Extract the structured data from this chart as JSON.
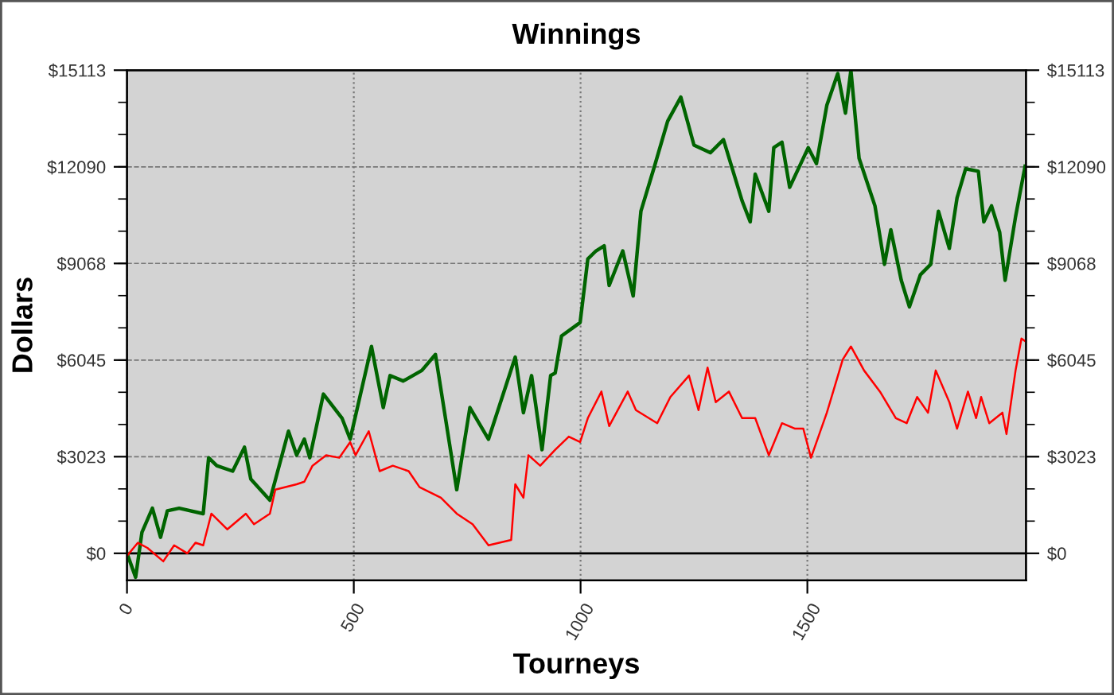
{
  "chart_data": {
    "type": "line",
    "title": "Winnings",
    "xlabel": "Tourneys",
    "ylabel": "Dollars",
    "xlim": [
      0,
      1982
    ],
    "xticks": [
      0,
      500,
      1000,
      1500
    ],
    "ylim": [
      -845,
      15113
    ],
    "yticks": [
      {
        "value": 0,
        "label": "$0"
      },
      {
        "value": 3023,
        "label": "$3023"
      },
      {
        "value": 6045,
        "label": "$6045"
      },
      {
        "value": 9068,
        "label": "$9068"
      },
      {
        "value": 12090,
        "label": "$12090"
      },
      {
        "value": 15113,
        "label": "$15113"
      }
    ],
    "y2lim": [
      -845,
      15113
    ],
    "y2ticks": [
      {
        "value": 0,
        "label": "$0"
      },
      {
        "value": 3023,
        "label": "$3023"
      },
      {
        "value": 6045,
        "label": "$6045"
      },
      {
        "value": 9068,
        "label": "$9068"
      },
      {
        "value": 12090,
        "label": "$12090"
      },
      {
        "value": 15113,
        "label": "$15113"
      }
    ],
    "grid": true,
    "marker": "none",
    "line_style": "solid",
    "ref_lines": [
      {
        "axis": "y",
        "value": 0,
        "color": "#000000",
        "line_style": "solid"
      }
    ],
    "series": [
      {
        "color": "#006400",
        "x": [
          0,
          19,
          33,
          56,
          74,
          89,
          115,
          168,
          180,
          198,
          233,
          259,
          273,
          315,
          356,
          374,
          391,
          403,
          433,
          474,
          492,
          539,
          565,
          580,
          609,
          650,
          680,
          727,
          756,
          797,
          856,
          874,
          892,
          915,
          934,
          944,
          958,
          999,
          1016,
          1034,
          1052,
          1063,
          1093,
          1116,
          1133,
          1163,
          1192,
          1221,
          1250,
          1286,
          1315,
          1356,
          1374,
          1385,
          1415,
          1426,
          1444,
          1461,
          1502,
          1520,
          1543,
          1567,
          1584,
          1596,
          1614,
          1649,
          1670,
          1684,
          1707,
          1725,
          1749,
          1772,
          1789,
          1813,
          1830,
          1849,
          1877,
          1889,
          1906,
          1924,
          1936,
          1959,
          1980
        ],
        "values": [
          0,
          -750,
          660,
          1410,
          500,
          1330,
          1410,
          1240,
          2990,
          2740,
          2570,
          3320,
          2320,
          1660,
          3820,
          3070,
          3570,
          2990,
          4980,
          4230,
          3570,
          6470,
          4560,
          5560,
          5390,
          5720,
          6220,
          1990,
          4560,
          3570,
          6140,
          4400,
          5560,
          3240,
          5560,
          5640,
          6800,
          7220,
          9210,
          9460,
          9620,
          8380,
          9460,
          8050,
          10700,
          12110,
          13520,
          14270,
          12770,
          12530,
          12940,
          11030,
          10370,
          11860,
          10700,
          12690,
          12860,
          11450,
          12690,
          12190,
          14020,
          15010,
          13770,
          15110,
          12360,
          10870,
          9040,
          10120,
          8540,
          7710,
          8710,
          9040,
          10700,
          9540,
          11120,
          12030,
          11950,
          10370,
          10870,
          10040,
          8540,
          10530,
          12110
        ]
      },
      {
        "color": "#ff0000",
        "x": [
          0,
          24,
          45,
          80,
          104,
          133,
          151,
          168,
          186,
          221,
          262,
          280,
          315,
          327,
          374,
          391,
          409,
          439,
          468,
          492,
          504,
          533,
          557,
          586,
          621,
          645,
          692,
          727,
          762,
          797,
          821,
          847,
          856,
          874,
          885,
          911,
          944,
          974,
          999,
          1016,
          1046,
          1063,
          1104,
          1122,
          1169,
          1198,
          1239,
          1260,
          1280,
          1298,
          1327,
          1356,
          1385,
          1415,
          1444,
          1473,
          1491,
          1508,
          1543,
          1578,
          1596,
          1625,
          1660,
          1695,
          1719,
          1742,
          1766,
          1783,
          1813,
          1830,
          1854,
          1872,
          1883,
          1901,
          1930,
          1939,
          1959,
          1972,
          1980
        ],
        "values": [
          -80,
          330,
          170,
          -250,
          250,
          0,
          330,
          250,
          1240,
          750,
          1240,
          910,
          1240,
          1990,
          2160,
          2240,
          2740,
          3070,
          2990,
          3480,
          3070,
          3820,
          2570,
          2740,
          2570,
          2070,
          1740,
          1240,
          910,
          250,
          330,
          420,
          2160,
          1740,
          3070,
          2740,
          3240,
          3650,
          3480,
          4230,
          5060,
          3980,
          5060,
          4480,
          4070,
          4890,
          5560,
          4480,
          5810,
          4730,
          5060,
          4230,
          4230,
          3070,
          4070,
          3900,
          3900,
          2990,
          4400,
          6060,
          6470,
          5720,
          5060,
          4230,
          4070,
          4890,
          4400,
          5720,
          4730,
          3900,
          5060,
          4230,
          4890,
          4070,
          4400,
          3730,
          5720,
          6720,
          6640
        ]
      }
    ]
  }
}
